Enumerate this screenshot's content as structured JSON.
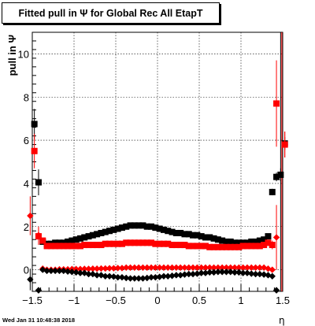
{
  "title": "Fitted pull in  Ψ  for Global Rec All EtapT",
  "datestamp": "Wed Jan 31 10:48:38 2018",
  "chart_data": {
    "type": "scatter",
    "title": "Fitted pull in  Ψ  for Global Rec All EtapT",
    "xlabel": "η",
    "ylabel": "pull in  Ψ",
    "xlim": [
      -1.5,
      1.5
    ],
    "ylim": [
      -1.0,
      11.0
    ],
    "grid": true,
    "x_ticks": [
      -1.5,
      -1,
      -0.5,
      0,
      0.5,
      1,
      1.5
    ],
    "x_tick_labels": [
      "−1.5",
      "−1",
      "−0.5",
      "0",
      "0.5",
      "1",
      "1.5"
    ],
    "y_ticks": [
      0,
      2,
      4,
      6,
      8,
      10
    ],
    "y_tick_labels": [
      "0",
      "2",
      "4",
      "6",
      "8",
      "10"
    ],
    "vertical_line_x": 1.475,
    "series": [
      {
        "color": "#000000",
        "marker": "square",
        "points": [
          {
            "x": -1.475,
            "y": 6.75,
            "err": 0.7
          },
          {
            "x": -1.425,
            "y": 4.05,
            "err": 0.6
          },
          {
            "x": -1.375,
            "y": 1.3,
            "err": 0.12
          },
          {
            "x": -1.325,
            "y": 1.2,
            "err": 0.05
          },
          {
            "x": -1.275,
            "y": 1.2
          },
          {
            "x": -1.225,
            "y": 1.25
          },
          {
            "x": -1.175,
            "y": 1.25
          },
          {
            "x": -1.125,
            "y": 1.25
          },
          {
            "x": -1.075,
            "y": 1.3
          },
          {
            "x": -1.025,
            "y": 1.35
          },
          {
            "x": -0.975,
            "y": 1.4
          },
          {
            "x": -0.925,
            "y": 1.45
          },
          {
            "x": -0.875,
            "y": 1.5
          },
          {
            "x": -0.825,
            "y": 1.55
          },
          {
            "x": -0.775,
            "y": 1.6
          },
          {
            "x": -0.725,
            "y": 1.65
          },
          {
            "x": -0.675,
            "y": 1.7
          },
          {
            "x": -0.625,
            "y": 1.75
          },
          {
            "x": -0.575,
            "y": 1.8
          },
          {
            "x": -0.525,
            "y": 1.85
          },
          {
            "x": -0.475,
            "y": 1.9
          },
          {
            "x": -0.425,
            "y": 1.95
          },
          {
            "x": -0.375,
            "y": 2.0
          },
          {
            "x": -0.325,
            "y": 2.05
          },
          {
            "x": -0.275,
            "y": 2.05
          },
          {
            "x": -0.225,
            "y": 2.05
          },
          {
            "x": -0.175,
            "y": 2.05
          },
          {
            "x": -0.125,
            "y": 2.0
          },
          {
            "x": -0.075,
            "y": 2.0
          },
          {
            "x": -0.025,
            "y": 1.95
          },
          {
            "x": 0.025,
            "y": 1.9
          },
          {
            "x": 0.075,
            "y": 1.85
          },
          {
            "x": 0.125,
            "y": 1.8
          },
          {
            "x": 0.175,
            "y": 1.75
          },
          {
            "x": 0.225,
            "y": 1.7
          },
          {
            "x": 0.275,
            "y": 1.7
          },
          {
            "x": 0.325,
            "y": 1.65
          },
          {
            "x": 0.375,
            "y": 1.65
          },
          {
            "x": 0.425,
            "y": 1.6
          },
          {
            "x": 0.475,
            "y": 1.6
          },
          {
            "x": 0.525,
            "y": 1.55
          },
          {
            "x": 0.575,
            "y": 1.5
          },
          {
            "x": 0.625,
            "y": 1.5
          },
          {
            "x": 0.675,
            "y": 1.45
          },
          {
            "x": 0.725,
            "y": 1.4
          },
          {
            "x": 0.775,
            "y": 1.35
          },
          {
            "x": 0.825,
            "y": 1.3
          },
          {
            "x": 0.875,
            "y": 1.3
          },
          {
            "x": 0.925,
            "y": 1.25
          },
          {
            "x": 0.975,
            "y": 1.25
          },
          {
            "x": 1.025,
            "y": 1.25
          },
          {
            "x": 1.075,
            "y": 1.25
          },
          {
            "x": 1.125,
            "y": 1.3
          },
          {
            "x": 1.175,
            "y": 1.3
          },
          {
            "x": 1.225,
            "y": 1.35
          },
          {
            "x": 1.275,
            "y": 1.4
          },
          {
            "x": 1.325,
            "y": 1.55,
            "err": 0.05
          },
          {
            "x": 1.375,
            "y": 3.6,
            "err": 0.15
          },
          {
            "x": 1.425,
            "y": 4.3,
            "err": 0.2
          },
          {
            "x": 1.475,
            "y": 4.4,
            "err": 0.3
          },
          {
            "x": 1.525,
            "y": 5.85,
            "err": 0.3
          }
        ]
      },
      {
        "color": "#ff0000",
        "marker": "square",
        "points": [
          {
            "x": -1.475,
            "y": 5.5,
            "err": 0.8
          },
          {
            "x": -1.425,
            "y": 1.55,
            "err": 0.4
          },
          {
            "x": -1.375,
            "y": 1.35,
            "err": 0.1
          },
          {
            "x": -1.325,
            "y": 1.1
          },
          {
            "x": -1.275,
            "y": 1.1
          },
          {
            "x": -1.225,
            "y": 1.1
          },
          {
            "x": -1.175,
            "y": 1.1
          },
          {
            "x": -1.125,
            "y": 1.1
          },
          {
            "x": -1.075,
            "y": 1.1
          },
          {
            "x": -1.025,
            "y": 1.1
          },
          {
            "x": -0.975,
            "y": 1.1
          },
          {
            "x": -0.925,
            "y": 1.1
          },
          {
            "x": -0.875,
            "y": 1.15
          },
          {
            "x": -0.825,
            "y": 1.15
          },
          {
            "x": -0.775,
            "y": 1.15
          },
          {
            "x": -0.725,
            "y": 1.15
          },
          {
            "x": -0.675,
            "y": 1.15
          },
          {
            "x": -0.625,
            "y": 1.2
          },
          {
            "x": -0.575,
            "y": 1.2
          },
          {
            "x": -0.525,
            "y": 1.2
          },
          {
            "x": -0.475,
            "y": 1.2
          },
          {
            "x": -0.425,
            "y": 1.2
          },
          {
            "x": -0.375,
            "y": 1.25
          },
          {
            "x": -0.325,
            "y": 1.25
          },
          {
            "x": -0.275,
            "y": 1.25
          },
          {
            "x": -0.225,
            "y": 1.25
          },
          {
            "x": -0.175,
            "y": 1.25
          },
          {
            "x": -0.125,
            "y": 1.25
          },
          {
            "x": -0.075,
            "y": 1.25
          },
          {
            "x": -0.025,
            "y": 1.2
          },
          {
            "x": 0.025,
            "y": 1.2
          },
          {
            "x": 0.075,
            "y": 1.2
          },
          {
            "x": 0.125,
            "y": 1.2
          },
          {
            "x": 0.175,
            "y": 1.15
          },
          {
            "x": 0.225,
            "y": 1.15
          },
          {
            "x": 0.275,
            "y": 1.15
          },
          {
            "x": 0.325,
            "y": 1.15
          },
          {
            "x": 0.375,
            "y": 1.1
          },
          {
            "x": 0.425,
            "y": 1.1
          },
          {
            "x": 0.475,
            "y": 1.1
          },
          {
            "x": 0.525,
            "y": 1.1
          },
          {
            "x": 0.575,
            "y": 1.1
          },
          {
            "x": 0.625,
            "y": 1.05
          },
          {
            "x": 0.675,
            "y": 1.05
          },
          {
            "x": 0.725,
            "y": 1.05
          },
          {
            "x": 0.775,
            "y": 1.05
          },
          {
            "x": 0.825,
            "y": 1.05
          },
          {
            "x": 0.875,
            "y": 1.05
          },
          {
            "x": 0.925,
            "y": 1.05
          },
          {
            "x": 0.975,
            "y": 1.05
          },
          {
            "x": 1.025,
            "y": 1.1
          },
          {
            "x": 1.075,
            "y": 1.1
          },
          {
            "x": 1.125,
            "y": 1.1
          },
          {
            "x": 1.175,
            "y": 1.1
          },
          {
            "x": 1.225,
            "y": 1.1
          },
          {
            "x": 1.275,
            "y": 1.15
          },
          {
            "x": 1.325,
            "y": 1.25,
            "err": 0.05
          },
          {
            "x": 1.375,
            "y": 1.15,
            "err": 0.2
          },
          {
            "x": 1.425,
            "y": 7.7,
            "err": 2.0
          },
          {
            "x": 1.525,
            "y": 5.8,
            "err": 0.6
          }
        ]
      },
      {
        "color": "#ff0000",
        "marker": "diamond",
        "points": [
          {
            "x": -1.525,
            "y": 2.5,
            "err": 0.9
          },
          {
            "x": -1.425,
            "y": 1.6,
            "err": 0.4
          },
          {
            "x": -1.375,
            "y": 0.05
          },
          {
            "x": -1.325,
            "y": 0.0
          },
          {
            "x": -1.275,
            "y": 0.0
          },
          {
            "x": -1.225,
            "y": 0.0
          },
          {
            "x": -1.175,
            "y": 0.02
          },
          {
            "x": -1.125,
            "y": 0.02
          },
          {
            "x": -1.075,
            "y": 0.02
          },
          {
            "x": -1.025,
            "y": 0.03
          },
          {
            "x": -0.975,
            "y": 0.03
          },
          {
            "x": -0.925,
            "y": 0.03
          },
          {
            "x": -0.875,
            "y": 0.04
          },
          {
            "x": -0.825,
            "y": 0.04
          },
          {
            "x": -0.775,
            "y": 0.05
          },
          {
            "x": -0.725,
            "y": 0.05
          },
          {
            "x": -0.675,
            "y": 0.06
          },
          {
            "x": -0.625,
            "y": 0.06
          },
          {
            "x": -0.575,
            "y": 0.07
          },
          {
            "x": -0.525,
            "y": 0.07
          },
          {
            "x": -0.475,
            "y": 0.08
          },
          {
            "x": -0.425,
            "y": 0.08
          },
          {
            "x": -0.375,
            "y": 0.1
          },
          {
            "x": -0.325,
            "y": 0.1
          },
          {
            "x": -0.275,
            "y": 0.1
          },
          {
            "x": -0.225,
            "y": 0.1
          },
          {
            "x": -0.175,
            "y": 0.1
          },
          {
            "x": -0.125,
            "y": 0.1
          },
          {
            "x": -0.075,
            "y": 0.1
          },
          {
            "x": -0.025,
            "y": 0.1
          },
          {
            "x": 0.025,
            "y": 0.1
          },
          {
            "x": 0.075,
            "y": 0.1
          },
          {
            "x": 0.125,
            "y": 0.1
          },
          {
            "x": 0.175,
            "y": 0.1
          },
          {
            "x": 0.225,
            "y": 0.1
          },
          {
            "x": 0.275,
            "y": 0.1
          },
          {
            "x": 0.325,
            "y": 0.1
          },
          {
            "x": 0.375,
            "y": 0.1
          },
          {
            "x": 0.425,
            "y": 0.1
          },
          {
            "x": 0.475,
            "y": 0.1
          },
          {
            "x": 0.525,
            "y": 0.1
          },
          {
            "x": 0.575,
            "y": 0.1
          },
          {
            "x": 0.625,
            "y": 0.1
          },
          {
            "x": 0.675,
            "y": 0.1
          },
          {
            "x": 0.725,
            "y": 0.1
          },
          {
            "x": 0.775,
            "y": 0.1
          },
          {
            "x": 0.825,
            "y": 0.1
          },
          {
            "x": 0.875,
            "y": 0.1
          },
          {
            "x": 0.925,
            "y": 0.1
          },
          {
            "x": 0.975,
            "y": 0.1
          },
          {
            "x": 1.025,
            "y": 0.1
          },
          {
            "x": 1.075,
            "y": 0.1
          },
          {
            "x": 1.125,
            "y": 0.1
          },
          {
            "x": 1.175,
            "y": 0.1
          },
          {
            "x": 1.225,
            "y": 0.1
          },
          {
            "x": 1.275,
            "y": 0.1
          },
          {
            "x": 1.325,
            "y": 0.05
          },
          {
            "x": 1.375,
            "y": 0.0
          },
          {
            "x": 1.425,
            "y": 1.5,
            "err": 1.5
          },
          {
            "x": 1.525,
            "y": 5.8,
            "err": 0.6
          }
        ]
      },
      {
        "color": "#000000",
        "marker": "diamond",
        "points": [
          {
            "x": -1.525,
            "y": -0.45,
            "err": 0.5
          },
          {
            "x": -1.425,
            "y": -0.95
          },
          {
            "x": -1.375,
            "y": 0.0
          },
          {
            "x": -1.325,
            "y": -0.05
          },
          {
            "x": -1.275,
            "y": -0.05
          },
          {
            "x": -1.225,
            "y": -0.05
          },
          {
            "x": -1.175,
            "y": -0.05
          },
          {
            "x": -1.125,
            "y": -0.05
          },
          {
            "x": -1.075,
            "y": -0.08
          },
          {
            "x": -1.025,
            "y": -0.1
          },
          {
            "x": -0.975,
            "y": -0.12
          },
          {
            "x": -0.925,
            "y": -0.15
          },
          {
            "x": -0.875,
            "y": -0.15
          },
          {
            "x": -0.825,
            "y": -0.2
          },
          {
            "x": -0.775,
            "y": -0.2
          },
          {
            "x": -0.725,
            "y": -0.25
          },
          {
            "x": -0.675,
            "y": -0.25
          },
          {
            "x": -0.625,
            "y": -0.3
          },
          {
            "x": -0.575,
            "y": -0.3
          },
          {
            "x": -0.525,
            "y": -0.32
          },
          {
            "x": -0.475,
            "y": -0.35
          },
          {
            "x": -0.425,
            "y": -0.35
          },
          {
            "x": -0.375,
            "y": -0.38
          },
          {
            "x": -0.325,
            "y": -0.4
          },
          {
            "x": -0.275,
            "y": -0.4
          },
          {
            "x": -0.225,
            "y": -0.4
          },
          {
            "x": -0.175,
            "y": -0.4
          },
          {
            "x": -0.125,
            "y": -0.38
          },
          {
            "x": -0.075,
            "y": -0.35
          },
          {
            "x": -0.025,
            "y": -0.35
          },
          {
            "x": 0.025,
            "y": -0.33
          },
          {
            "x": 0.075,
            "y": -0.3
          },
          {
            "x": 0.125,
            "y": -0.3
          },
          {
            "x": 0.175,
            "y": -0.28
          },
          {
            "x": 0.225,
            "y": -0.25
          },
          {
            "x": 0.275,
            "y": -0.25
          },
          {
            "x": 0.325,
            "y": -0.22
          },
          {
            "x": 0.375,
            "y": -0.2
          },
          {
            "x": 0.425,
            "y": -0.2
          },
          {
            "x": 0.475,
            "y": -0.18
          },
          {
            "x": 0.525,
            "y": -0.15
          },
          {
            "x": 0.575,
            "y": -0.15
          },
          {
            "x": 0.625,
            "y": -0.12
          },
          {
            "x": 0.675,
            "y": -0.12
          },
          {
            "x": 0.725,
            "y": -0.1
          },
          {
            "x": 0.775,
            "y": -0.1
          },
          {
            "x": 0.825,
            "y": -0.1
          },
          {
            "x": 0.875,
            "y": -0.1
          },
          {
            "x": 0.925,
            "y": -0.12
          },
          {
            "x": 0.975,
            "y": -0.12
          },
          {
            "x": 1.025,
            "y": -0.15
          },
          {
            "x": 1.075,
            "y": -0.15
          },
          {
            "x": 1.125,
            "y": -0.18
          },
          {
            "x": 1.175,
            "y": -0.2
          },
          {
            "x": 1.225,
            "y": -0.2
          },
          {
            "x": 1.275,
            "y": -0.22
          },
          {
            "x": 1.325,
            "y": -0.25
          },
          {
            "x": 1.375,
            "y": -0.3
          },
          {
            "x": 1.425,
            "y": -0.95
          }
        ]
      }
    ]
  }
}
